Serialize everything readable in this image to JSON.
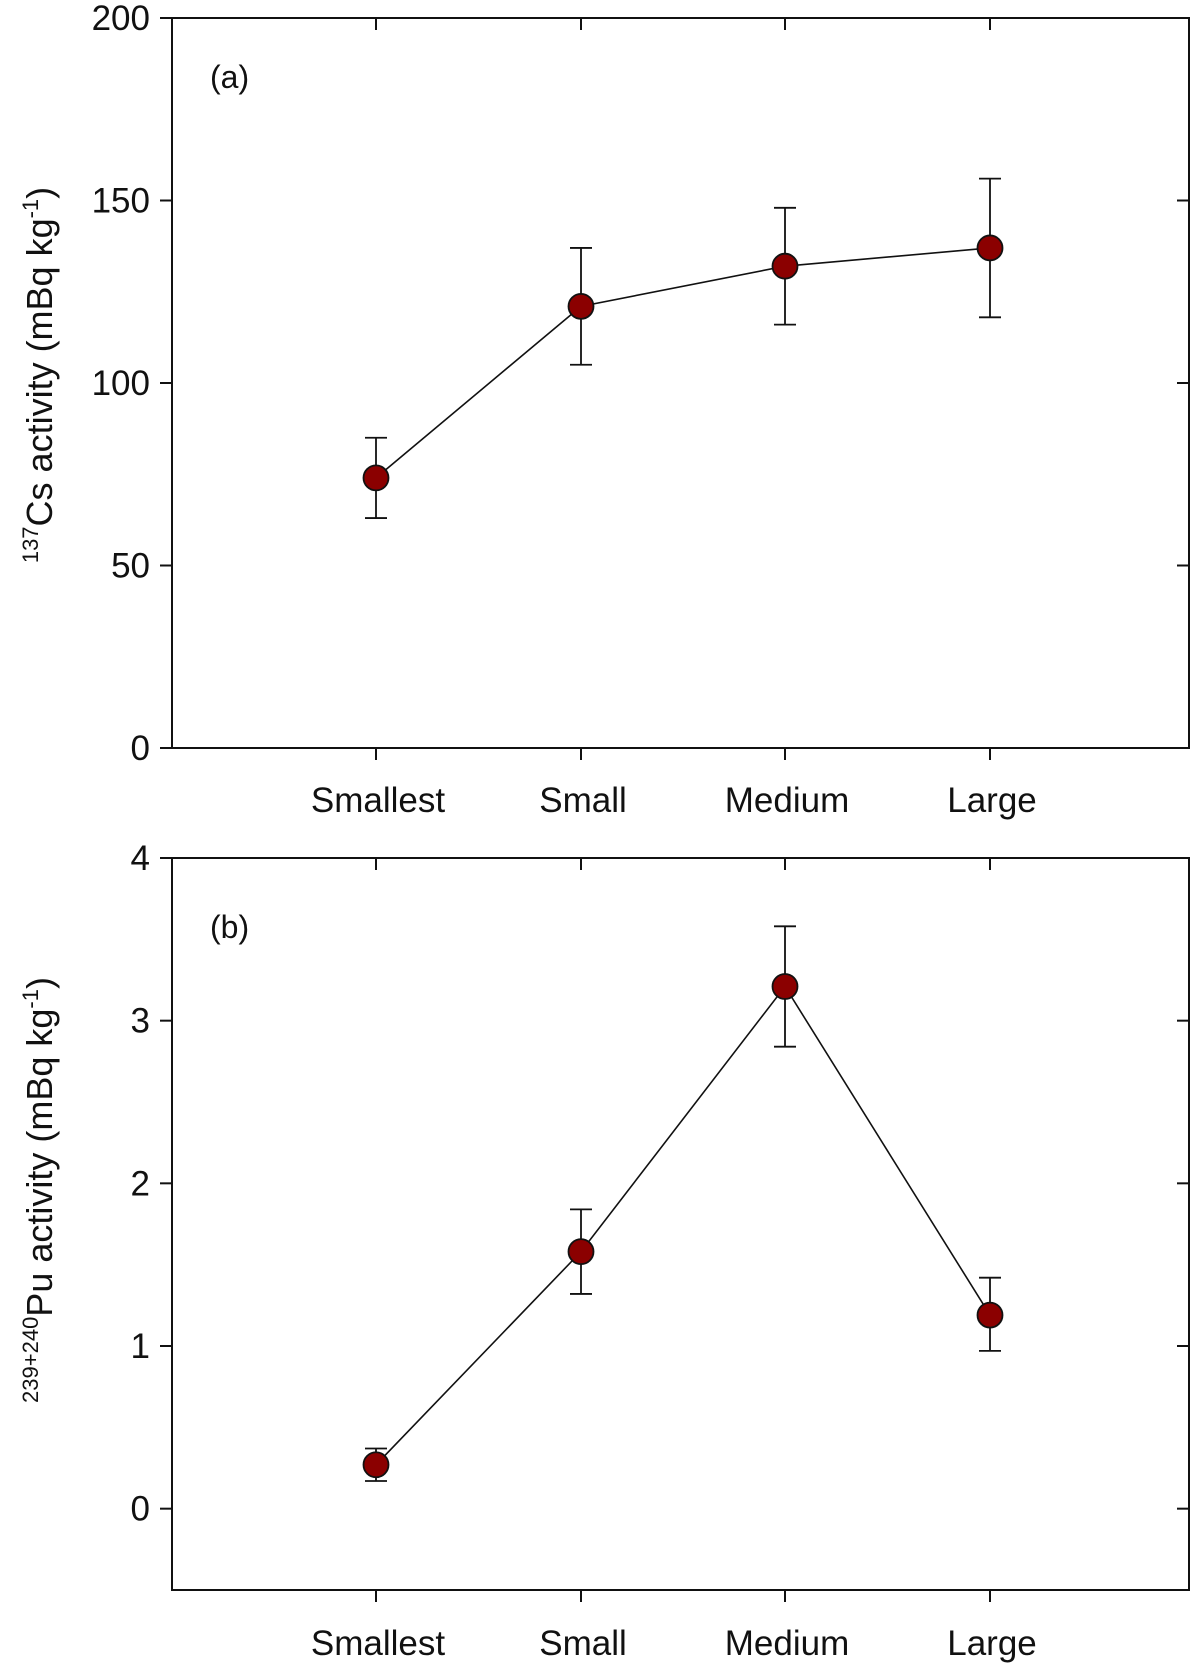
{
  "chart_data": [
    {
      "type": "line",
      "panel_label": "(a)",
      "categories": [
        "Smallest",
        "Small",
        "Medium",
        "Large"
      ],
      "series": [
        {
          "name": "137Cs activity",
          "values": [
            74,
            121,
            132,
            137
          ],
          "error_low": [
            63,
            105,
            116,
            118
          ],
          "error_high": [
            85,
            137,
            148,
            156
          ]
        }
      ],
      "ylabel": {
        "sup": "137",
        "main": "Cs activity (mBq kg",
        "exp": "-1",
        "close": ")"
      },
      "ylim": [
        0,
        200
      ],
      "yticks": [
        0,
        50,
        100,
        150,
        200
      ],
      "xlabel": "",
      "grid": false,
      "marker_color": "#8b0000",
      "line_color": "#111111"
    },
    {
      "type": "line",
      "panel_label": "(b)",
      "categories": [
        "Smallest",
        "Small",
        "Medium",
        "Large"
      ],
      "series": [
        {
          "name": "239+240Pu activity",
          "values": [
            0.27,
            1.58,
            3.21,
            1.19
          ],
          "error_low": [
            0.17,
            1.32,
            2.84,
            0.97
          ],
          "error_high": [
            0.37,
            1.84,
            3.58,
            1.42
          ]
        }
      ],
      "ylabel": {
        "sup": "239+240",
        "main": "Pu activity (mBq kg",
        "exp": "-1",
        "close": ")"
      },
      "ylim": [
        -0.5,
        4
      ],
      "yticks": [
        0,
        1,
        2,
        3,
        4
      ],
      "xlabel": "",
      "grid": false,
      "marker_color": "#8b0000",
      "line_color": "#111111"
    }
  ]
}
